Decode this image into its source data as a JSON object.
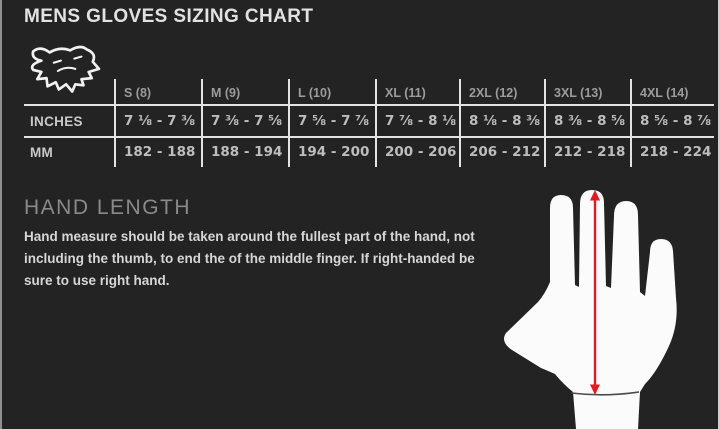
{
  "chart_data": {
    "type": "table",
    "title": "MENS GLOVES SIZING CHART",
    "columns": [
      "S (8)",
      "M (9)",
      "L (10)",
      "XL (11)",
      "2XL (12)",
      "3XL (13)",
      "4XL (14)"
    ],
    "rows": [
      {
        "label": "INCHES",
        "values": [
          "7 ⅛ - 7 ⅜",
          "7 ⅜ - 7 ⅝",
          "7 ⅝ - 7 ⅞",
          "7 ⅞ - 8 ⅛",
          "8 ⅛ - 8 ⅜",
          "8 ⅜ - 8 ⅝",
          "8 ⅝ - 8 ⅞"
        ]
      },
      {
        "label": "MM",
        "values": [
          "182 - 188",
          "188 - 194",
          "194 - 200",
          "200 -  206",
          "206 - 212",
          "212 - 218",
          "218 - 224"
        ]
      }
    ]
  },
  "brand": {
    "logo_icon": "fox-head-logo"
  },
  "hand_length": {
    "heading": "HAND LENGTH",
    "description": "Hand measure should be taken around the fullest part of the hand, not including the thumb, to end the of the middle finger. If right-handed be sure to use right hand.",
    "illustration_icon": "hand-silhouette-with-measurement-arrow"
  },
  "colors": {
    "background": "#232323",
    "table_line": "#e3e3e3",
    "title_text": "#e2e2e2",
    "header_text": "#9c9c9c",
    "value_text": "#bdbdbd",
    "body_text": "#d6d6d6",
    "heading_gray": "#8a8a8a",
    "arrow_red": "#e01b24",
    "hand_white": "#fbfbfb"
  }
}
